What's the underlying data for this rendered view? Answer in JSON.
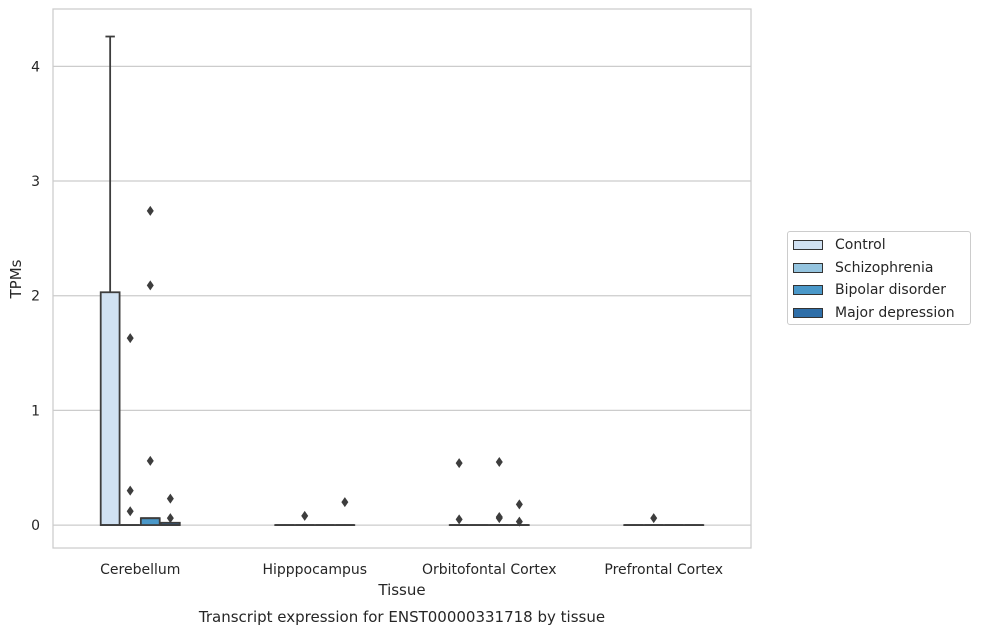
{
  "chart_data": {
    "type": "box",
    "xlabel": "Tissue",
    "ylabel": "TPMs",
    "caption": "Transcript expression for ENST00000331718 by tissue",
    "categories": [
      "Cerebellum",
      "Hipppocampus",
      "Orbitofontal Cortex",
      "Prefrontal Cortex"
    ],
    "ylim": [
      -0.2,
      4.5
    ],
    "yticks": [
      0,
      1,
      2,
      3,
      4
    ],
    "grid": true,
    "legend_position": "right",
    "series": [
      {
        "name": "Control",
        "color": "#d0e1f2",
        "boxes": [
          {
            "q1": 0,
            "median": 0,
            "q3": 2.03,
            "whisker_low": 0,
            "whisker_high": 4.26,
            "outliers": []
          },
          {
            "q1": 0,
            "median": 0,
            "q3": 0,
            "whisker_low": 0,
            "whisker_high": 0,
            "outliers": []
          },
          {
            "q1": 0,
            "median": 0,
            "q3": 0,
            "whisker_low": 0,
            "whisker_high": 0,
            "outliers": [
              0.54,
              0.05
            ]
          },
          {
            "q1": 0,
            "median": 0,
            "q3": 0,
            "whisker_low": 0,
            "whisker_high": 0,
            "outliers": []
          }
        ]
      },
      {
        "name": "Schizophrenia",
        "color": "#94c4df",
        "boxes": [
          {
            "q1": 0,
            "median": 0,
            "q3": 0,
            "whisker_low": 0,
            "whisker_high": 0,
            "outliers": [
              1.63,
              0.3,
              0.12
            ]
          },
          {
            "q1": 0,
            "median": 0,
            "q3": 0,
            "whisker_low": 0,
            "whisker_high": 0,
            "outliers": [
              0.08
            ]
          },
          {
            "q1": 0,
            "median": 0,
            "q3": 0,
            "whisker_low": 0,
            "whisker_high": 0,
            "outliers": []
          },
          {
            "q1": 0,
            "median": 0,
            "q3": 0,
            "whisker_low": 0,
            "whisker_high": 0,
            "outliers": [
              0.06
            ]
          }
        ]
      },
      {
        "name": "Bipolar disorder",
        "color": "#4a98c9",
        "boxes": [
          {
            "q1": 0,
            "median": 0.06,
            "q3": 0.06,
            "whisker_low": 0,
            "whisker_high": 0.06,
            "outliers": [
              2.74,
              2.09,
              0.56
            ]
          },
          {
            "q1": 0,
            "median": 0,
            "q3": 0,
            "whisker_low": 0,
            "whisker_high": 0,
            "outliers": []
          },
          {
            "q1": 0,
            "median": 0,
            "q3": 0,
            "whisker_low": 0,
            "whisker_high": 0,
            "outliers": [
              0.55,
              0.07,
              0.06
            ]
          },
          {
            "q1": 0,
            "median": 0,
            "q3": 0,
            "whisker_low": 0,
            "whisker_high": 0,
            "outliers": []
          }
        ]
      },
      {
        "name": "Major depression",
        "color": "#2e6ea8",
        "boxes": [
          {
            "q1": 0,
            "median": 0,
            "q3": 0.02,
            "whisker_low": 0,
            "whisker_high": 0.02,
            "outliers": [
              0.23,
              0.06
            ]
          },
          {
            "q1": 0,
            "median": 0,
            "q3": 0,
            "whisker_low": 0,
            "whisker_high": 0,
            "outliers": [
              0.2
            ]
          },
          {
            "q1": 0,
            "median": 0,
            "q3": 0,
            "whisker_low": 0,
            "whisker_high": 0,
            "outliers": [
              0.18,
              0.03
            ]
          },
          {
            "q1": 0,
            "median": 0,
            "q3": 0,
            "whisker_low": 0,
            "whisker_high": 0,
            "outliers": []
          }
        ]
      }
    ]
  }
}
